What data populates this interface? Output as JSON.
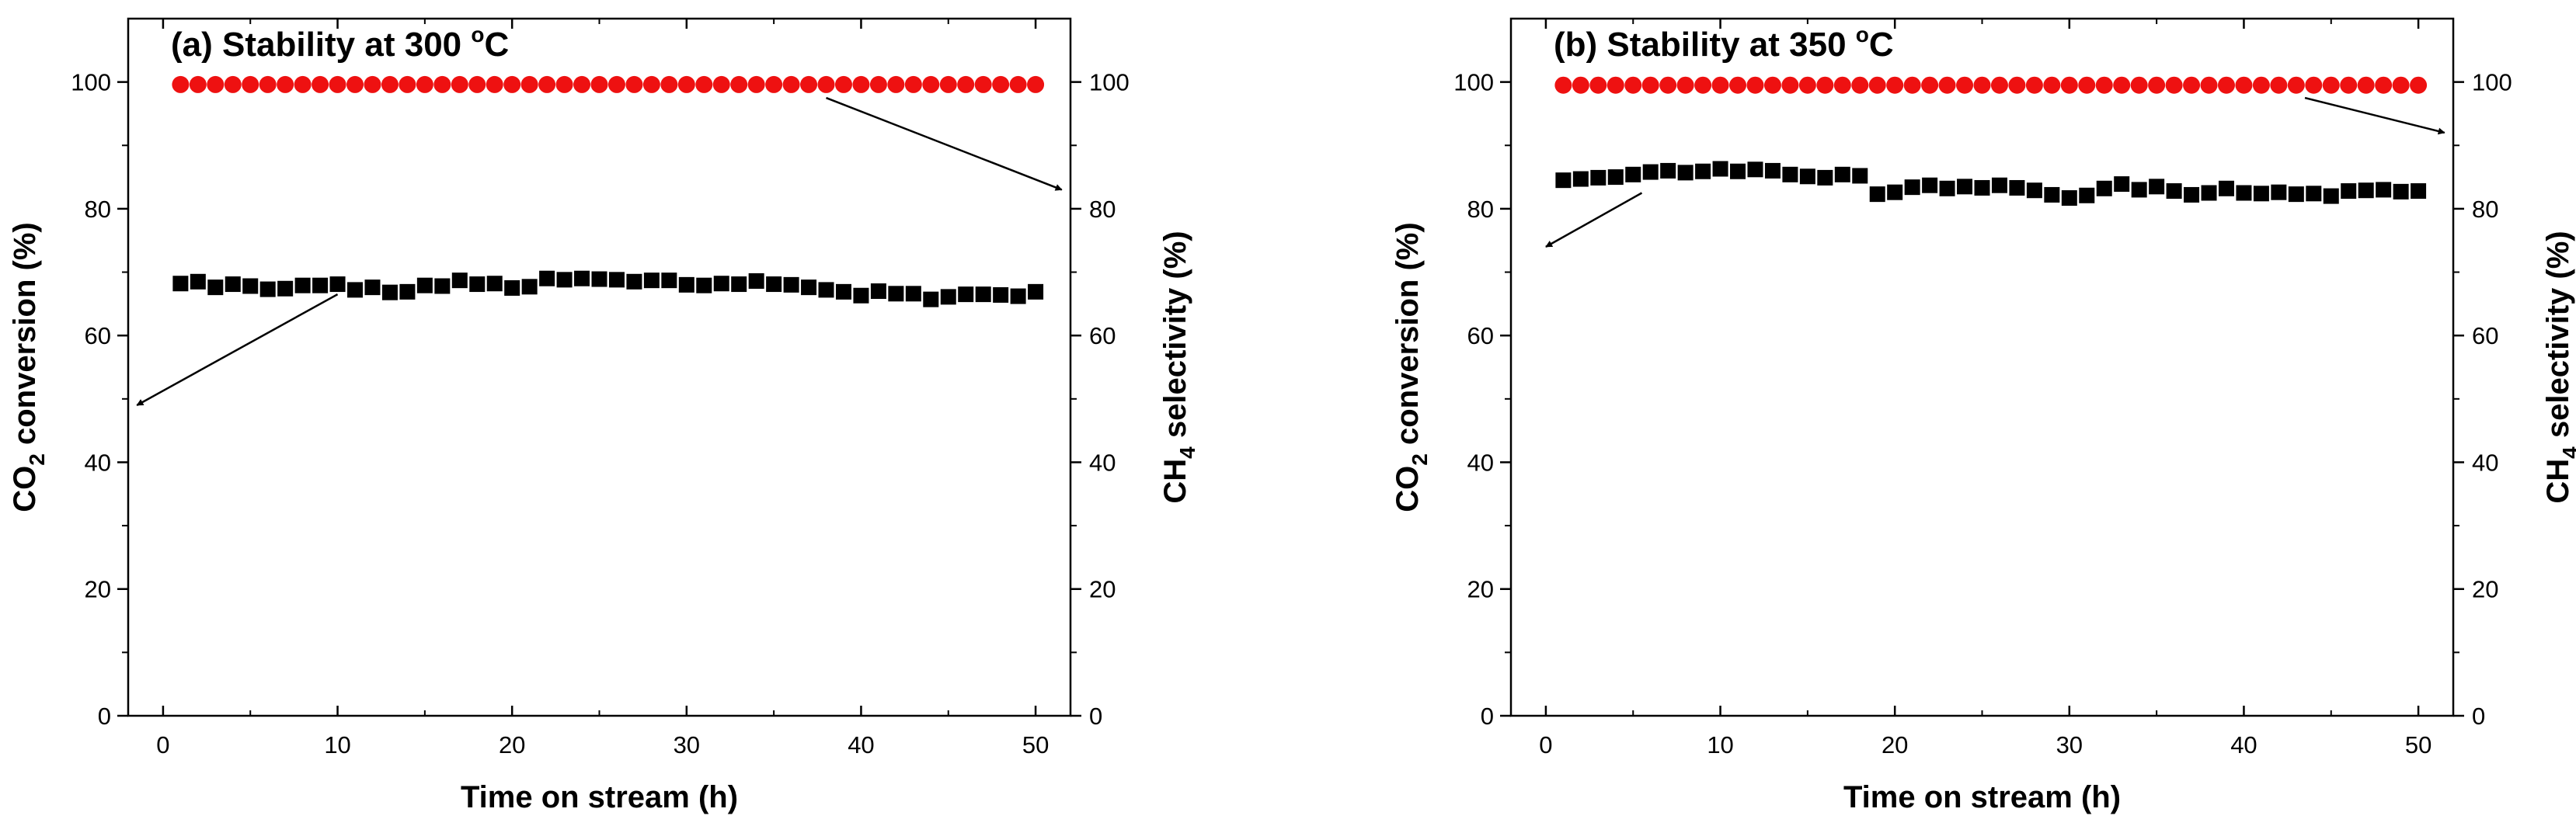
{
  "chart_data": [
    {
      "type": "scatter",
      "panel": "a",
      "title": {
        "main": "(a) Stability at 300 ",
        "degree": "o",
        "unit": "C"
      },
      "xlabel": "Time on stream (h)",
      "ylabel_left": {
        "pre": "CO",
        "sub": "2",
        "post": " conversion (%)"
      },
      "ylabel_right": {
        "pre": "CH",
        "sub": "4",
        "post": " selectivity (%)"
      },
      "xlim": [
        -2,
        52
      ],
      "ylim": [
        0,
        110
      ],
      "xticks": [
        0,
        10,
        20,
        30,
        40,
        50
      ],
      "yticks": [
        0,
        20,
        40,
        60,
        80,
        100
      ],
      "xtick_labels": [
        "0",
        "10",
        "20",
        "30",
        "40",
        "50"
      ],
      "ytick_labels": [
        "0",
        "20",
        "40",
        "60",
        "80",
        "100"
      ],
      "series": [
        {
          "name": "CO2 conversion",
          "axis": "left",
          "marker": "square",
          "color": "#000000",
          "x": [
            1,
            2,
            3,
            4,
            5,
            6,
            7,
            8,
            9,
            10,
            11,
            12,
            13,
            14,
            15,
            16,
            17,
            18,
            19,
            20,
            21,
            22,
            23,
            24,
            25,
            26,
            27,
            28,
            29,
            30,
            31,
            32,
            33,
            34,
            35,
            36,
            37,
            38,
            39,
            40,
            41,
            42,
            43,
            44,
            45,
            46,
            47,
            48,
            49,
            50
          ],
          "y": [
            68.2,
            68.5,
            67.6,
            68.1,
            67.8,
            67.3,
            67.4,
            67.9,
            67.9,
            68.1,
            67.2,
            67.6,
            66.8,
            66.9,
            67.9,
            67.8,
            68.7,
            68.1,
            68.2,
            67.5,
            67.7,
            69.0,
            68.8,
            69.0,
            68.9,
            68.8,
            68.5,
            68.7,
            68.7,
            68.0,
            67.9,
            68.2,
            68.1,
            68.6,
            68.1,
            68.0,
            67.6,
            67.2,
            66.9,
            66.3,
            67.0,
            66.6,
            66.6,
            65.7,
            66.1,
            66.5,
            66.5,
            66.4,
            66.2,
            66.9
          ]
        },
        {
          "name": "CH4 selectivity",
          "axis": "right",
          "marker": "circle",
          "color": "#ee1111",
          "x": [
            1,
            2,
            3,
            4,
            5,
            6,
            7,
            8,
            9,
            10,
            11,
            12,
            13,
            14,
            15,
            16,
            17,
            18,
            19,
            20,
            21,
            22,
            23,
            24,
            25,
            26,
            27,
            28,
            29,
            30,
            31,
            32,
            33,
            34,
            35,
            36,
            37,
            38,
            39,
            40,
            41,
            42,
            43,
            44,
            45,
            46,
            47,
            48,
            49,
            50
          ],
          "y": [
            99.6,
            99.6,
            99.6,
            99.6,
            99.6,
            99.6,
            99.6,
            99.6,
            99.6,
            99.6,
            99.6,
            99.6,
            99.6,
            99.6,
            99.6,
            99.6,
            99.6,
            99.6,
            99.6,
            99.6,
            99.6,
            99.6,
            99.6,
            99.6,
            99.6,
            99.6,
            99.6,
            99.6,
            99.6,
            99.6,
            99.6,
            99.6,
            99.6,
            99.6,
            99.6,
            99.6,
            99.6,
            99.6,
            99.6,
            99.6,
            99.6,
            99.6,
            99.6,
            99.6,
            99.6,
            99.6,
            99.6,
            99.6,
            99.6,
            99.6
          ]
        }
      ],
      "annotations": [
        {
          "name": "arrow-to-left-axis",
          "from": [
            10,
            66.5
          ],
          "to": [
            -1.5,
            49
          ],
          "points_to": "left axis"
        },
        {
          "name": "arrow-to-right-axis",
          "from": [
            38,
            97.5
          ],
          "to": [
            51.5,
            83
          ],
          "points_to": "right axis"
        }
      ]
    },
    {
      "type": "scatter",
      "panel": "b",
      "title": {
        "main": "(b) Stability at 350 ",
        "degree": "o",
        "unit": "C"
      },
      "xlabel": "Time on stream (h)",
      "ylabel_left": {
        "pre": "CO",
        "sub": "2",
        "post": " conversion (%)"
      },
      "ylabel_right": {
        "pre": "CH",
        "sub": "4",
        "post": " selectivity (%)"
      },
      "xlim": [
        -2,
        52
      ],
      "ylim": [
        0,
        110
      ],
      "xticks": [
        0,
        10,
        20,
        30,
        40,
        50
      ],
      "yticks": [
        0,
        20,
        40,
        60,
        80,
        100
      ],
      "xtick_labels": [
        "0",
        "10",
        "20",
        "30",
        "40",
        "50"
      ],
      "ytick_labels": [
        "0",
        "20",
        "40",
        "60",
        "80",
        "100"
      ],
      "series": [
        {
          "name": "CO2 conversion",
          "axis": "left",
          "marker": "square",
          "color": "#000000",
          "x": [
            1,
            2,
            3,
            4,
            5,
            6,
            7,
            8,
            9,
            10,
            11,
            12,
            13,
            14,
            15,
            16,
            17,
            18,
            19,
            20,
            21,
            22,
            23,
            24,
            25,
            26,
            27,
            28,
            29,
            30,
            31,
            32,
            33,
            34,
            35,
            36,
            37,
            38,
            39,
            40,
            41,
            42,
            43,
            44,
            45,
            46,
            47,
            48,
            49,
            50
          ],
          "y": [
            84.5,
            84.7,
            84.9,
            85.0,
            85.4,
            85.8,
            86.0,
            85.7,
            85.9,
            86.3,
            85.9,
            86.2,
            86.0,
            85.4,
            85.1,
            84.9,
            85.4,
            85.2,
            82.3,
            82.6,
            83.4,
            83.7,
            83.2,
            83.5,
            83.3,
            83.7,
            83.3,
            82.9,
            82.2,
            81.7,
            82.1,
            83.2,
            83.9,
            83.0,
            83.5,
            82.8,
            82.2,
            82.5,
            83.2,
            82.5,
            82.4,
            82.6,
            82.3,
            82.4,
            82.0,
            82.8,
            82.9,
            83.0,
            82.7,
            82.8
          ]
        },
        {
          "name": "CH4 selectivity",
          "axis": "right",
          "marker": "circle",
          "color": "#ee1111",
          "x": [
            1,
            2,
            3,
            4,
            5,
            6,
            7,
            8,
            9,
            10,
            11,
            12,
            13,
            14,
            15,
            16,
            17,
            18,
            19,
            20,
            21,
            22,
            23,
            24,
            25,
            26,
            27,
            28,
            29,
            30,
            31,
            32,
            33,
            34,
            35,
            36,
            37,
            38,
            39,
            40,
            41,
            42,
            43,
            44,
            45,
            46,
            47,
            48,
            49,
            50
          ],
          "y": [
            99.5,
            99.5,
            99.5,
            99.5,
            99.5,
            99.5,
            99.5,
            99.5,
            99.5,
            99.5,
            99.5,
            99.5,
            99.5,
            99.5,
            99.5,
            99.5,
            99.5,
            99.5,
            99.5,
            99.5,
            99.5,
            99.5,
            99.5,
            99.5,
            99.5,
            99.5,
            99.5,
            99.5,
            99.5,
            99.5,
            99.5,
            99.5,
            99.5,
            99.5,
            99.5,
            99.5,
            99.5,
            99.5,
            99.5,
            99.5,
            99.5,
            99.5,
            99.5,
            99.5,
            99.5,
            99.5,
            99.5,
            99.5,
            99.5,
            99.5
          ]
        }
      ],
      "annotations": [
        {
          "name": "arrow-to-left-axis",
          "from": [
            5.5,
            82.5
          ],
          "to": [
            0,
            74
          ],
          "points_to": "left axis"
        },
        {
          "name": "arrow-to-right-axis",
          "from": [
            43.5,
            97.5
          ],
          "to": [
            51.5,
            92
          ],
          "points_to": "right axis"
        }
      ]
    }
  ]
}
